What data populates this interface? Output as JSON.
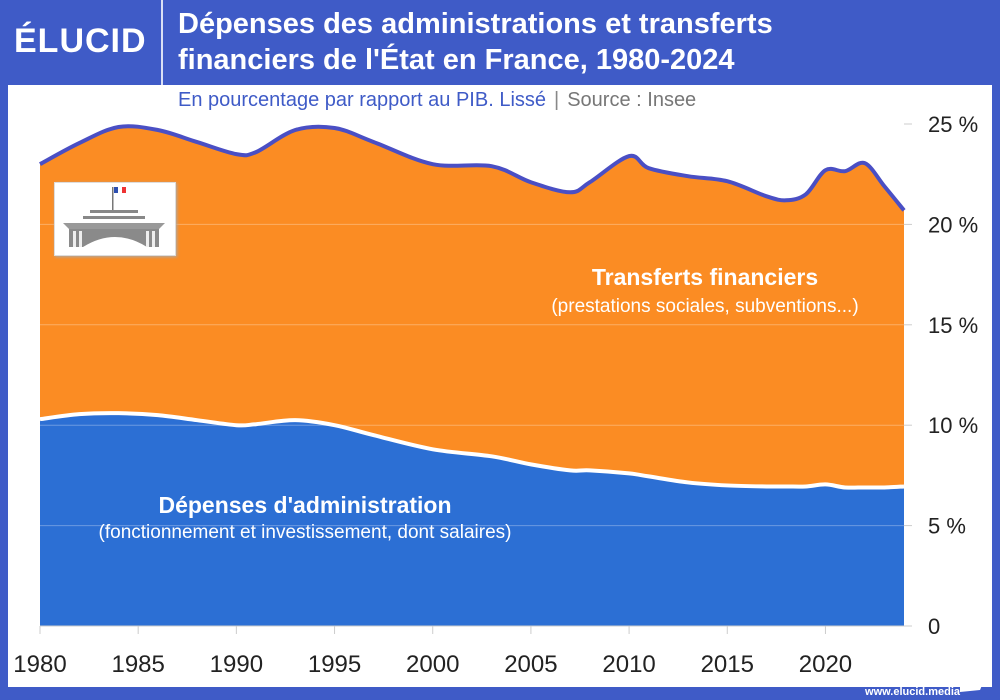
{
  "header": {
    "logo": "ÉLUCID",
    "title_line1": "Dépenses des administrations et transferts",
    "title_line2": "financiers de l'État en France, 1980-2024"
  },
  "subtitle": {
    "text": "En pourcentage par rapport au PIB. Lissé",
    "separator": "|",
    "source": "Source : Insee"
  },
  "footer": {
    "url": "www.elucid.media"
  },
  "colors": {
    "brand": "#3f5bc7",
    "transferts": "#fb8c23",
    "administration": "#2c6fd4",
    "total_line": "#4a4fc4",
    "admin_line": "#ffffff"
  },
  "chart_data": {
    "type": "area",
    "stacked": true,
    "title": "Dépenses des administrations et transferts financiers de l'État en France, 1980-2024",
    "xlim": [
      1980,
      2024
    ],
    "ylim": [
      0,
      25
    ],
    "x_ticks": [
      "1980",
      "1985",
      "1990",
      "1995",
      "2000",
      "2005",
      "2010",
      "2015",
      "2020"
    ],
    "y_ticks": [
      "0",
      "5 %",
      "10 %",
      "15 %",
      "20 %",
      "25 %"
    ],
    "y_axis_position": "right",
    "grid": true,
    "x": [
      1980,
      1982,
      1984,
      1986,
      1988,
      1990,
      1991,
      1993,
      1995,
      1997,
      2000,
      2003,
      2005,
      2007,
      2008,
      2010,
      2011,
      2013,
      2015,
      2017,
      2018,
      2019,
      2020,
      2021,
      2022,
      2023,
      2024
    ],
    "series": [
      {
        "name": "Dépenses d'administration",
        "subname": "(fonctionnement et investissement, dont salaires)",
        "values": [
          10.3,
          10.55,
          10.6,
          10.5,
          10.25,
          10.0,
          10.05,
          10.25,
          10.0,
          9.5,
          8.8,
          8.45,
          8.05,
          7.75,
          7.75,
          7.6,
          7.45,
          7.15,
          7.0,
          6.95,
          6.95,
          6.95,
          7.05,
          6.9,
          6.9,
          6.9,
          6.95
        ]
      },
      {
        "name": "Transferts financiers",
        "subname": "(prestations sociales, subventions...)",
        "values": [
          12.7,
          13.5,
          14.25,
          14.2,
          13.85,
          13.5,
          13.55,
          14.45,
          14.8,
          14.6,
          14.2,
          14.45,
          14.05,
          13.85,
          14.35,
          15.8,
          15.35,
          15.25,
          15.15,
          14.45,
          14.25,
          14.55,
          15.65,
          15.75,
          16.15,
          15.0,
          13.75
        ]
      }
    ]
  }
}
